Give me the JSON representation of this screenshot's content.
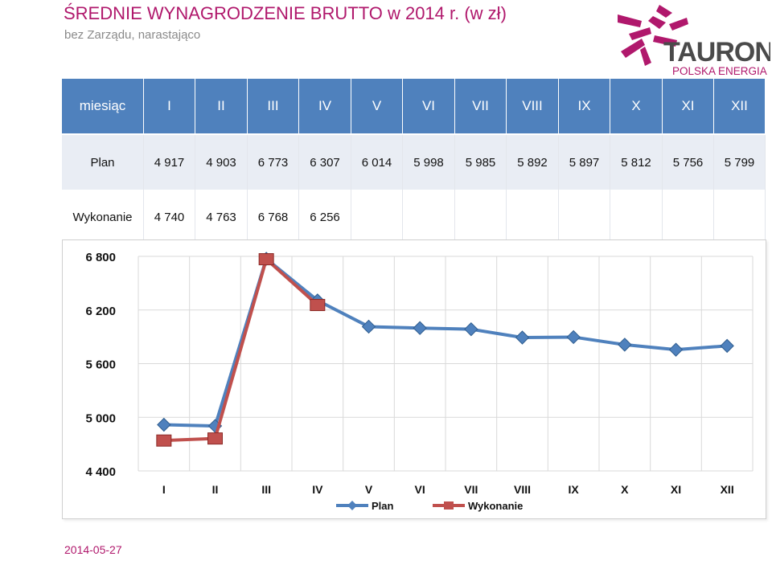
{
  "header": {
    "title": "ŚREDNIE WYNAGRODZENIE BRUTTO w 2014 r. (w zł)",
    "subtitle": "bez Zarządu, narastająco"
  },
  "logo": {
    "name": "TAURON",
    "tagline": "POLSKA ENERGIA",
    "colors": {
      "brand": "#b0186c",
      "text": "#4a4a4a",
      "tagline": "#b0186c"
    }
  },
  "table": {
    "header_label": "miesiąc",
    "months": [
      "I",
      "II",
      "III",
      "IV",
      "V",
      "VI",
      "VII",
      "VIII",
      "IX",
      "X",
      "XI",
      "XII"
    ],
    "rows": [
      {
        "label": "Plan",
        "values": [
          "4 917",
          "4 903",
          "6 773",
          "6 307",
          "6 014",
          "5 998",
          "5 985",
          "5 892",
          "5 897",
          "5 812",
          "5 756",
          "5 799"
        ]
      },
      {
        "label": "Wykonanie",
        "values": [
          "4 740",
          "4 763",
          "6 768",
          "6 256",
          "",
          "",
          "",
          "",
          "",
          "",
          "",
          ""
        ]
      }
    ]
  },
  "chart_data": {
    "type": "line",
    "categories": [
      "I",
      "II",
      "III",
      "IV",
      "V",
      "VI",
      "VII",
      "VIII",
      "IX",
      "X",
      "XI",
      "XII"
    ],
    "series": [
      {
        "name": "Plan",
        "color": "#4f81bd",
        "marker": "diamond",
        "values": [
          4917,
          4903,
          6773,
          6307,
          6014,
          5998,
          5985,
          5892,
          5897,
          5812,
          5756,
          5799
        ]
      },
      {
        "name": "Wykonanie",
        "color": "#c0504d",
        "marker": "square",
        "values": [
          4740,
          4763,
          6768,
          6256,
          null,
          null,
          null,
          null,
          null,
          null,
          null,
          null
        ]
      }
    ],
    "yticks": [
      "6 800",
      "6 200",
      "5 600",
      "5 000",
      "4 400"
    ],
    "ytick_values": [
      6800,
      6200,
      5600,
      5000,
      4400
    ],
    "ylim": [
      4400,
      6800
    ],
    "grid": true,
    "legend": "bottom"
  },
  "footer": {
    "date": "2014-05-27"
  }
}
